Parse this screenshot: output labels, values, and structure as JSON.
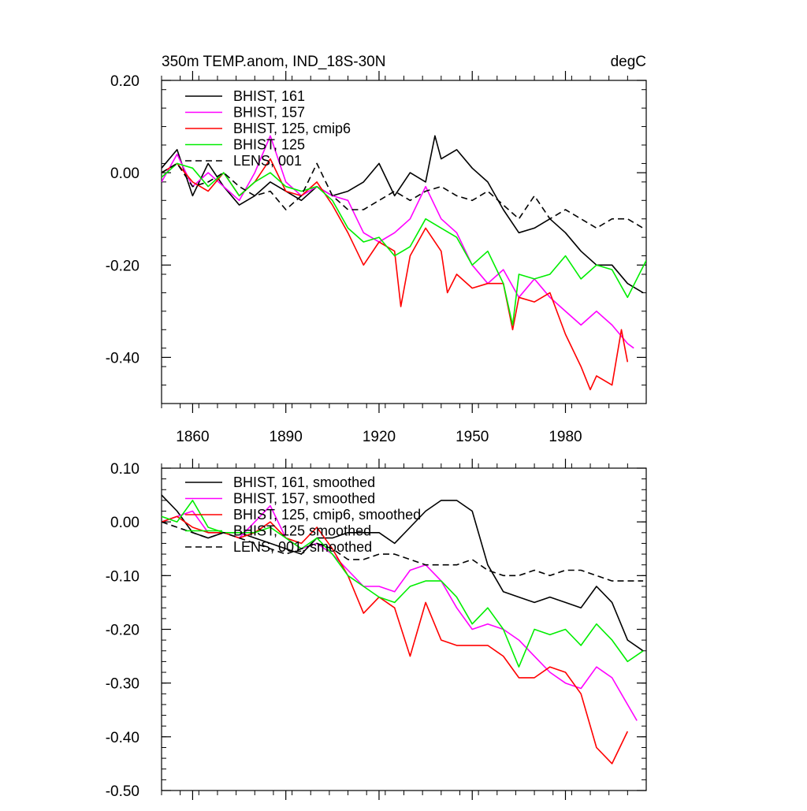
{
  "chart_data": [
    {
      "type": "line",
      "title": "350m TEMP.anom, IND_18S-30N",
      "units": "degC",
      "xlabel": "",
      "ylabel": "",
      "xlim": [
        1850,
        2006
      ],
      "ylim": [
        -0.5,
        0.2
      ],
      "xticks": [
        1860,
        1890,
        1920,
        1950,
        1980
      ],
      "xtick_labels": [
        "1860",
        "1890",
        "1920",
        "1950",
        "1980"
      ],
      "yticks": [
        0.2,
        0.0,
        -0.2,
        -0.4
      ],
      "ytick_labels": [
        "0.20",
        "0.00",
        "-0.20",
        "-0.40"
      ],
      "legend_position": "top-left",
      "grid": false,
      "series": [
        {
          "name": "BHIST, 161",
          "color": "#000000",
          "dash": "solid",
          "x": [
            1850,
            1855,
            1860,
            1865,
            1870,
            1875,
            1880,
            1885,
            1890,
            1895,
            1900,
            1905,
            1910,
            1915,
            1920,
            1925,
            1930,
            1935,
            1938,
            1940,
            1945,
            1950,
            1955,
            1960,
            1965,
            1970,
            1975,
            1980,
            1985,
            1990,
            1995,
            2000,
            2005
          ],
          "y": [
            0.01,
            0.05,
            -0.05,
            0.02,
            -0.03,
            -0.07,
            -0.05,
            -0.02,
            -0.04,
            -0.06,
            -0.03,
            -0.05,
            -0.04,
            -0.02,
            0.02,
            -0.05,
            0.0,
            -0.02,
            0.08,
            0.03,
            0.05,
            0.01,
            -0.02,
            -0.08,
            -0.13,
            -0.12,
            -0.1,
            -0.13,
            -0.17,
            -0.2,
            -0.2,
            -0.24,
            -0.26
          ]
        },
        {
          "name": "BHIST, 157",
          "color": "#ff00ff",
          "dash": "solid",
          "x": [
            1850,
            1855,
            1860,
            1865,
            1870,
            1875,
            1880,
            1885,
            1890,
            1895,
            1900,
            1905,
            1910,
            1915,
            1920,
            1925,
            1930,
            1935,
            1940,
            1945,
            1950,
            1955,
            1960,
            1965,
            1970,
            1975,
            1980,
            1985,
            1990,
            1995,
            2000,
            2002
          ],
          "y": [
            -0.02,
            0.04,
            -0.03,
            0.0,
            -0.03,
            -0.06,
            0.0,
            0.08,
            -0.02,
            -0.05,
            -0.03,
            -0.05,
            -0.06,
            -0.13,
            -0.15,
            -0.13,
            -0.1,
            -0.03,
            -0.1,
            -0.13,
            -0.2,
            -0.24,
            -0.21,
            -0.27,
            -0.23,
            -0.27,
            -0.3,
            -0.33,
            -0.3,
            -0.33,
            -0.37,
            -0.38
          ]
        },
        {
          "name": "BHIST, 125, cmip6",
          "color": "#ff0000",
          "dash": "solid",
          "x": [
            1850,
            1855,
            1860,
            1865,
            1870,
            1875,
            1880,
            1885,
            1890,
            1895,
            1900,
            1905,
            1910,
            1915,
            1920,
            1925,
            1927,
            1930,
            1935,
            1940,
            1942,
            1945,
            1950,
            1955,
            1960,
            1963,
            1965,
            1970,
            1975,
            1980,
            1985,
            1988,
            1990,
            1995,
            1998,
            2000
          ],
          "y": [
            0.0,
            0.02,
            -0.02,
            -0.04,
            0.0,
            -0.05,
            -0.02,
            0.03,
            -0.04,
            -0.05,
            -0.02,
            -0.07,
            -0.13,
            -0.2,
            -0.15,
            -0.17,
            -0.29,
            -0.18,
            -0.12,
            -0.17,
            -0.26,
            -0.22,
            -0.25,
            -0.24,
            -0.24,
            -0.34,
            -0.27,
            -0.28,
            -0.26,
            -0.35,
            -0.42,
            -0.47,
            -0.44,
            -0.46,
            -0.34,
            -0.41
          ]
        },
        {
          "name": "BHIST, 125",
          "color": "#00ee00",
          "dash": "solid",
          "x": [
            1850,
            1855,
            1860,
            1865,
            1870,
            1875,
            1880,
            1885,
            1890,
            1895,
            1900,
            1905,
            1910,
            1915,
            1920,
            1925,
            1930,
            1935,
            1940,
            1945,
            1950,
            1955,
            1960,
            1963,
            1965,
            1970,
            1975,
            1980,
            1985,
            1990,
            1995,
            2000,
            2006
          ],
          "y": [
            -0.01,
            0.02,
            0.01,
            -0.03,
            0.0,
            -0.05,
            -0.02,
            0.0,
            -0.03,
            -0.04,
            -0.03,
            -0.06,
            -0.12,
            -0.15,
            -0.14,
            -0.18,
            -0.16,
            -0.1,
            -0.12,
            -0.14,
            -0.2,
            -0.17,
            -0.24,
            -0.33,
            -0.22,
            -0.23,
            -0.22,
            -0.18,
            -0.23,
            -0.2,
            -0.21,
            -0.27,
            -0.19
          ]
        },
        {
          "name": "LENS, 001",
          "color": "#000000",
          "dash": "dashed",
          "x": [
            1850,
            1855,
            1860,
            1865,
            1870,
            1875,
            1880,
            1885,
            1890,
            1895,
            1900,
            1905,
            1910,
            1915,
            1920,
            1925,
            1930,
            1935,
            1940,
            1945,
            1950,
            1955,
            1960,
            1965,
            1970,
            1975,
            1980,
            1985,
            1990,
            1995,
            2000,
            2005
          ],
          "y": [
            0.0,
            0.02,
            -0.03,
            -0.02,
            0.0,
            -0.03,
            -0.05,
            -0.04,
            -0.08,
            -0.05,
            0.02,
            -0.05,
            -0.08,
            -0.08,
            -0.06,
            -0.04,
            -0.06,
            -0.04,
            -0.03,
            -0.05,
            -0.06,
            -0.04,
            -0.07,
            -0.1,
            -0.05,
            -0.1,
            -0.08,
            -0.1,
            -0.12,
            -0.1,
            -0.1,
            -0.12
          ]
        }
      ]
    },
    {
      "type": "line",
      "title": "",
      "xlabel": "",
      "ylabel": "",
      "xlim": [
        1850,
        2006
      ],
      "ylim": [
        -0.5,
        0.1
      ],
      "yticks": [
        0.1,
        0.0,
        -0.1,
        -0.2,
        -0.3,
        -0.4,
        -0.5
      ],
      "ytick_labels": [
        "0.10",
        "0.00",
        "-0.10",
        "-0.20",
        "-0.30",
        "-0.40",
        "-0.50"
      ],
      "legend_position": "top-left",
      "grid": false,
      "series": [
        {
          "name": "BHIST, 161, smoothed",
          "color": "#000000",
          "dash": "solid",
          "x": [
            1850,
            1855,
            1860,
            1865,
            1870,
            1875,
            1880,
            1885,
            1890,
            1895,
            1900,
            1905,
            1910,
            1915,
            1920,
            1925,
            1930,
            1935,
            1940,
            1945,
            1950,
            1955,
            1960,
            1965,
            1970,
            1975,
            1980,
            1985,
            1990,
            1995,
            2000,
            2005
          ],
          "y": [
            0.05,
            0.02,
            -0.02,
            -0.03,
            -0.02,
            -0.02,
            -0.03,
            -0.04,
            -0.05,
            -0.06,
            -0.03,
            -0.03,
            -0.02,
            -0.02,
            -0.02,
            -0.04,
            -0.01,
            0.02,
            0.04,
            0.04,
            0.02,
            -0.08,
            -0.13,
            -0.14,
            -0.15,
            -0.14,
            -0.15,
            -0.16,
            -0.12,
            -0.15,
            -0.22,
            -0.24
          ]
        },
        {
          "name": "BHIST, 157, smoothed",
          "color": "#ff00ff",
          "dash": "solid",
          "x": [
            1850,
            1855,
            1860,
            1865,
            1870,
            1875,
            1880,
            1885,
            1890,
            1895,
            1900,
            1905,
            1910,
            1915,
            1920,
            1925,
            1930,
            1935,
            1940,
            1945,
            1950,
            1955,
            1960,
            1965,
            1970,
            1975,
            1980,
            1985,
            1990,
            1995,
            2000,
            2003
          ],
          "y": [
            0.0,
            0.01,
            0.02,
            -0.02,
            -0.02,
            -0.03,
            0.0,
            0.03,
            -0.03,
            -0.05,
            -0.04,
            -0.06,
            -0.09,
            -0.12,
            -0.12,
            -0.13,
            -0.09,
            -0.08,
            -0.11,
            -0.16,
            -0.2,
            -0.19,
            -0.2,
            -0.22,
            -0.25,
            -0.28,
            -0.3,
            -0.31,
            -0.27,
            -0.29,
            -0.34,
            -0.37
          ]
        },
        {
          "name": "BHIST, 125, cmip6, smoothed",
          "color": "#ff0000",
          "dash": "solid",
          "x": [
            1850,
            1855,
            1860,
            1865,
            1870,
            1875,
            1880,
            1885,
            1890,
            1895,
            1900,
            1905,
            1910,
            1915,
            1920,
            1925,
            1930,
            1935,
            1940,
            1945,
            1950,
            1955,
            1960,
            1965,
            1970,
            1975,
            1980,
            1985,
            1990,
            1995,
            2000
          ],
          "y": [
            0.0,
            0.01,
            -0.01,
            -0.02,
            -0.02,
            -0.03,
            -0.02,
            0.0,
            -0.03,
            -0.04,
            -0.01,
            -0.05,
            -0.1,
            -0.17,
            -0.14,
            -0.16,
            -0.25,
            -0.15,
            -0.22,
            -0.23,
            -0.23,
            -0.23,
            -0.25,
            -0.29,
            -0.29,
            -0.27,
            -0.28,
            -0.32,
            -0.42,
            -0.45,
            -0.39
          ]
        },
        {
          "name": "BHIST, 125 smoothed",
          "color": "#00ee00",
          "dash": "solid",
          "x": [
            1850,
            1855,
            1860,
            1865,
            1870,
            1875,
            1880,
            1885,
            1890,
            1895,
            1900,
            1905,
            1910,
            1915,
            1920,
            1925,
            1930,
            1935,
            1940,
            1945,
            1950,
            1955,
            1960,
            1965,
            1970,
            1975,
            1980,
            1985,
            1990,
            1995,
            2000,
            2005
          ],
          "y": [
            0.01,
            0.0,
            0.04,
            -0.01,
            -0.02,
            -0.02,
            -0.02,
            -0.01,
            -0.03,
            -0.05,
            -0.03,
            -0.06,
            -0.1,
            -0.12,
            -0.14,
            -0.15,
            -0.12,
            -0.11,
            -0.11,
            -0.14,
            -0.19,
            -0.16,
            -0.2,
            -0.27,
            -0.2,
            -0.21,
            -0.2,
            -0.23,
            -0.19,
            -0.22,
            -0.26,
            -0.24
          ]
        },
        {
          "name": "LENS, 001, smoothed",
          "color": "#000000",
          "dash": "dashed",
          "x": [
            1850,
            1855,
            1860,
            1865,
            1870,
            1875,
            1880,
            1885,
            1890,
            1895,
            1900,
            1905,
            1910,
            1915,
            1920,
            1925,
            1930,
            1935,
            1940,
            1945,
            1950,
            1955,
            1960,
            1965,
            1970,
            1975,
            1980,
            1985,
            1990,
            1995,
            2000,
            2005
          ],
          "y": [
            0.0,
            -0.01,
            -0.02,
            -0.03,
            -0.02,
            -0.03,
            -0.04,
            -0.05,
            -0.06,
            -0.05,
            -0.04,
            -0.05,
            -0.07,
            -0.07,
            -0.06,
            -0.06,
            -0.07,
            -0.08,
            -0.08,
            -0.08,
            -0.07,
            -0.09,
            -0.1,
            -0.1,
            -0.09,
            -0.1,
            -0.09,
            -0.09,
            -0.1,
            -0.11,
            -0.11,
            -0.11
          ]
        }
      ]
    }
  ]
}
